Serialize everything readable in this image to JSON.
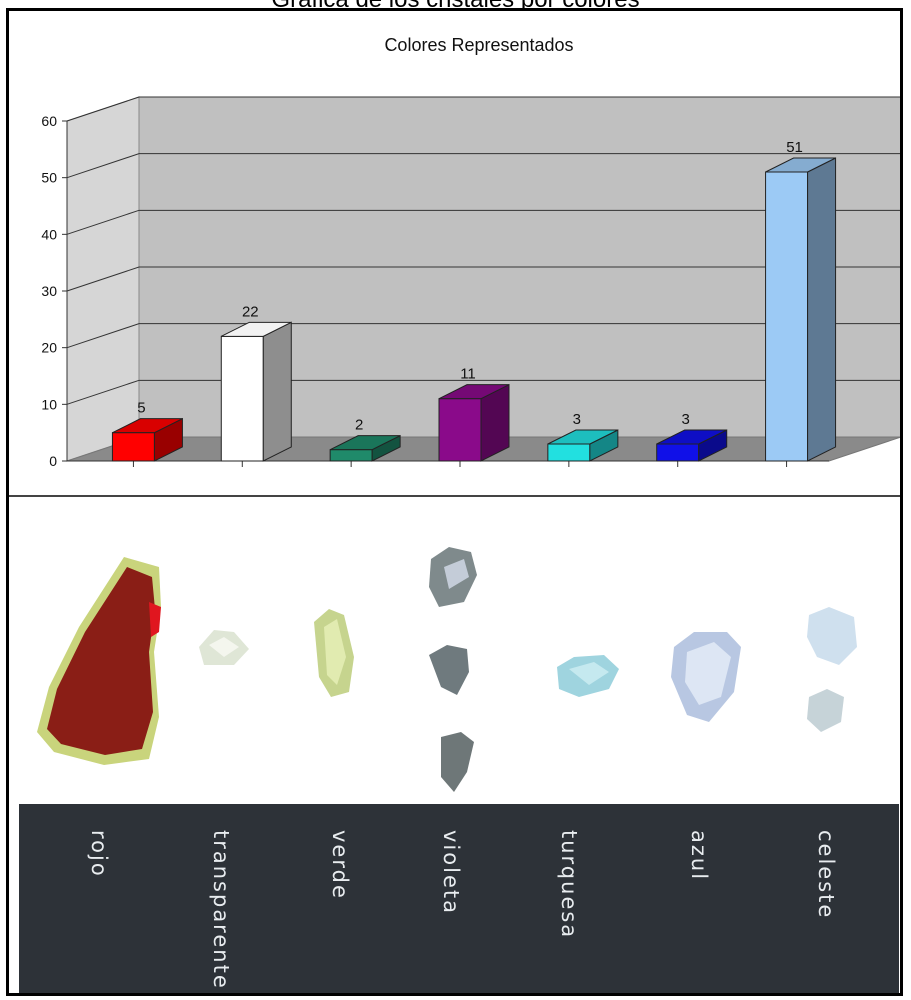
{
  "caption": "Gráfica de los cristales por colores",
  "chart_data": {
    "type": "bar",
    "title": "Colores Representados",
    "xlabel": "",
    "ylabel": "",
    "ylim": [
      0,
      60
    ],
    "y_ticks": [
      "0",
      "10",
      "20",
      "30",
      "40",
      "50",
      "60"
    ],
    "grid": true,
    "three_d": true,
    "categories": [
      "rojo",
      "transparente",
      "verde",
      "violeta",
      "turquesa",
      "azul",
      "celeste"
    ],
    "values": [
      5,
      22,
      2,
      11,
      3,
      3,
      51
    ],
    "colors": [
      "#ff0000",
      "#ffffff",
      "#1f8a6a",
      "#8a0a8a",
      "#22e0e0",
      "#1010e8",
      "#9ccaf5"
    ]
  },
  "labels": [
    "rojo",
    "transparente",
    "verde",
    "violeta",
    "turquesa",
    "azul",
    "celeste"
  ]
}
